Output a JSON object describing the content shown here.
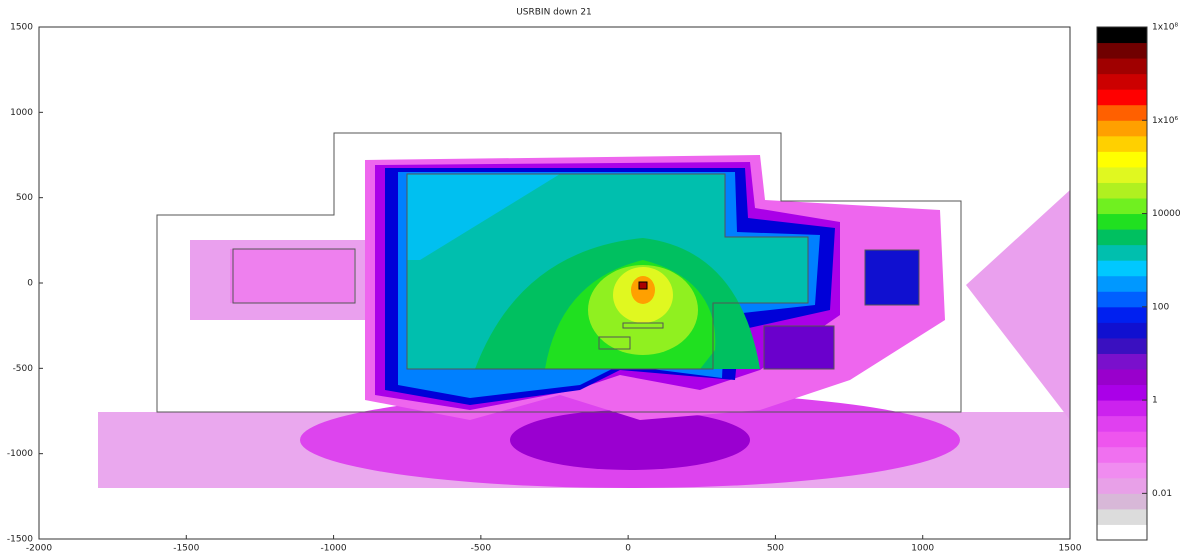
{
  "chart_data": {
    "type": "heatmap",
    "title": "USRBIN down 21",
    "xlim": [
      -2000,
      1500
    ],
    "xticks": [
      -2000,
      -1500,
      -1000,
      -500,
      0,
      500,
      1000,
      1500
    ],
    "ylim": [
      -1500,
      1500
    ],
    "yticks": [
      -1500,
      -1000,
      -500,
      0,
      500,
      1000,
      1500
    ],
    "colorbar": {
      "scale": "log",
      "lim": [
        0.001,
        100000000
      ],
      "ticks": [
        {
          "value": 100000000,
          "label": "1x10⁸"
        },
        {
          "value": 1000000,
          "label": "1x10⁶"
        },
        10000,
        100,
        1,
        0.01
      ],
      "colors": [
        "#ffffff",
        "#dcdcdc",
        "#d8b8d8",
        "#e8a0e8",
        "#f08cf0",
        "#f070f0",
        "#ee55ee",
        "#e040f0",
        "#cc22ee",
        "#aa00e8",
        "#9900cc",
        "#7a10cc",
        "#3a10c0",
        "#1010d0",
        "#0020f0",
        "#0060ff",
        "#0098ff",
        "#00c8ff",
        "#00bfae",
        "#00c060",
        "#20e020",
        "#70f020",
        "#b0f020",
        "#e0f820",
        "#ffff00",
        "#ffd000",
        "#ffa000",
        "#ff6000",
        "#ff0000",
        "#cc0000",
        "#a00000",
        "#700000",
        "#000000"
      ]
    }
  }
}
